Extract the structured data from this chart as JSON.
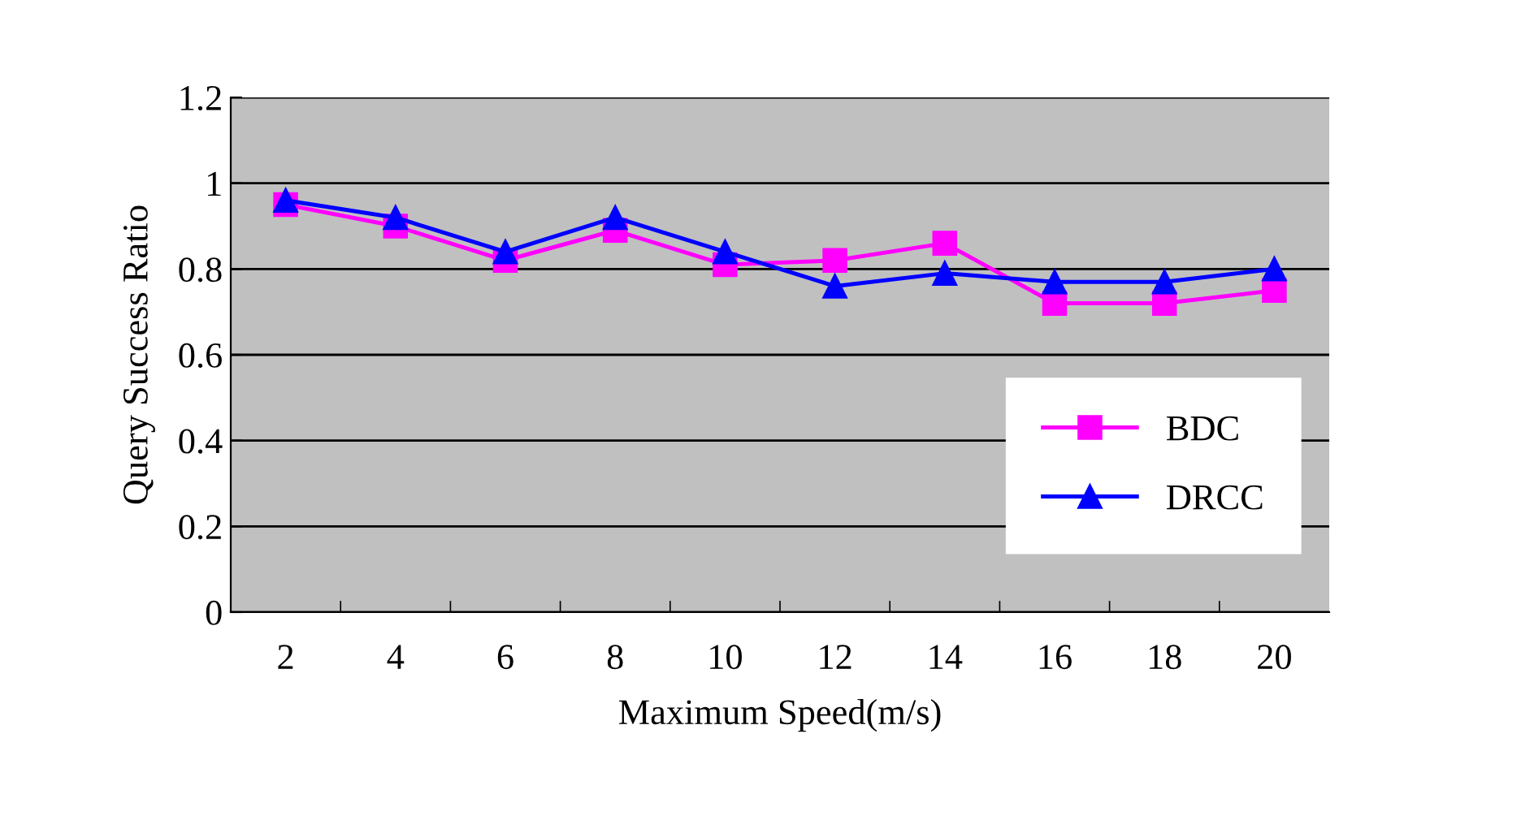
{
  "chart_data": {
    "type": "line",
    "xlabel": "Maximum Speed(m/s)",
    "ylabel": "Query Success Ratio",
    "categories": [
      "2",
      "4",
      "6",
      "8",
      "10",
      "12",
      "14",
      "16",
      "18",
      "20"
    ],
    "series": [
      {
        "name": "BDC",
        "color": "#ff00ff",
        "marker": "square",
        "values": [
          0.95,
          0.9,
          0.82,
          0.89,
          0.81,
          0.82,
          0.86,
          0.72,
          0.72,
          0.75
        ]
      },
      {
        "name": "DRCC",
        "color": "#0000ff",
        "marker": "triangle",
        "values": [
          0.96,
          0.92,
          0.84,
          0.92,
          0.84,
          0.76,
          0.79,
          0.77,
          0.77,
          0.8
        ]
      }
    ],
    "ylim": [
      0,
      1.2
    ],
    "yticks": [
      0,
      0.2,
      0.4,
      0.6,
      0.8,
      1,
      1.2
    ],
    "grid": "y",
    "legend": "bottom right",
    "line_style": "solid"
  }
}
